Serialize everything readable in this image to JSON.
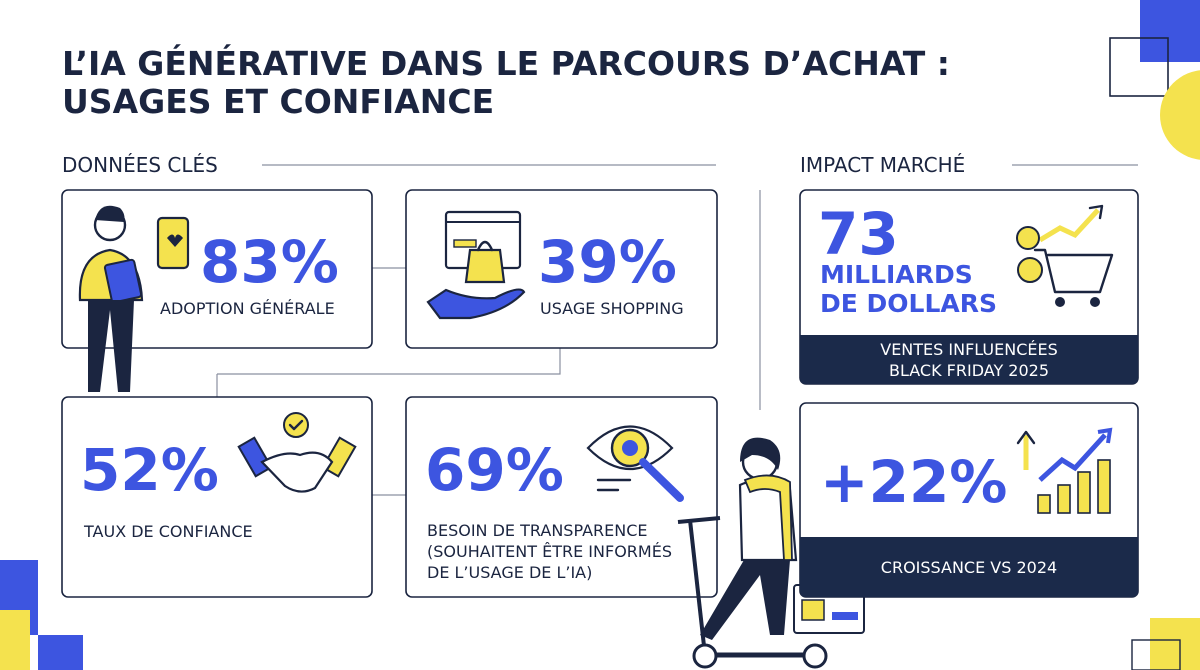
{
  "header": {
    "title_lines": [
      "L’IA GÉNÉRATIVE DANS LE PARCOURS D’ACHAT :",
      "USAGES ET CONFIANCE"
    ]
  },
  "sections": {
    "key_data": "DONNÉES CLÉS",
    "market_impact": "IMPACT MARCHÉ"
  },
  "key_cards": [
    {
      "figure": "83%",
      "label_lines": [
        "ADOPTION GÉNÉRALE"
      ]
    },
    {
      "figure": "39%",
      "label_lines": [
        "USAGE SHOPPING"
      ]
    },
    {
      "figure": "52%",
      "label_lines": [
        "TAUX DE CONFIANCE"
      ]
    },
    {
      "figure": "69%",
      "label_lines": [
        "BESOIN DE TRANSPARENCE",
        "(SOUHAITENT ÊTRE INFORMÉS",
        "DE L’USAGE DE L’IA)"
      ]
    }
  ],
  "impact_cards": [
    {
      "figure": "73",
      "unit_lines": [
        "MILLIARDS",
        "DE DOLLARS"
      ],
      "caption_lines": [
        "VENTES INFLUENCÉES",
        "BLACK FRIDAY 2025"
      ]
    },
    {
      "figure": "+22%",
      "caption_lines": [
        "CROISSANCE VS 2024"
      ]
    }
  ]
}
